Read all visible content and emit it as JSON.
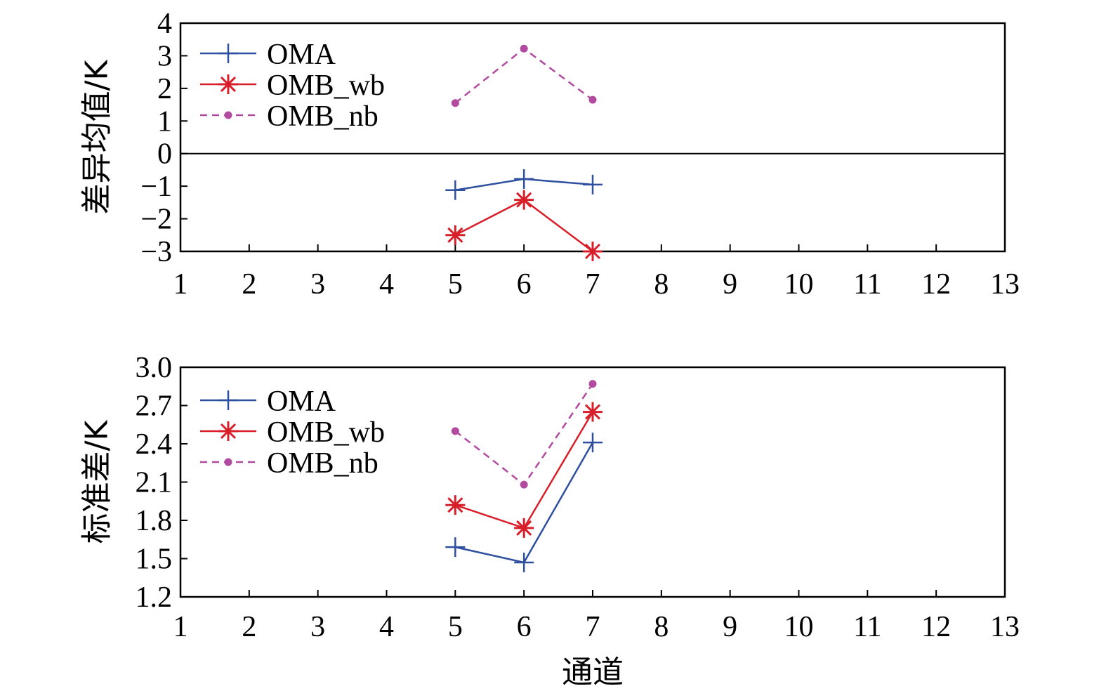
{
  "colors": {
    "OMA": "#2f4f9f",
    "OMB_wb": "#d81e28",
    "OMB_nb": "#b24aa0"
  },
  "chart_data": [
    {
      "type": "line",
      "xlabel": "",
      "ylabel": "差异均值/K",
      "xlim": [
        1,
        13
      ],
      "ylim": [
        -3,
        4
      ],
      "xticks": [
        1,
        2,
        3,
        4,
        5,
        6,
        7,
        8,
        9,
        10,
        11,
        12,
        13
      ],
      "yticks": [
        -3,
        -2,
        -1,
        0,
        1,
        2,
        3,
        4
      ],
      "ytick_labels": [
        "−3",
        "−2",
        "−1",
        "0",
        "1",
        "2",
        "3",
        "4"
      ],
      "zero_line": true,
      "legend_position": "top-left",
      "series": [
        {
          "name": "OMA",
          "marker": "plus",
          "dash": "solid",
          "x": [
            5,
            6,
            7
          ],
          "y": [
            -1.12,
            -0.78,
            -0.95
          ]
        },
        {
          "name": "OMB_wb",
          "marker": "asterisk",
          "dash": "solid",
          "x": [
            5,
            6,
            7
          ],
          "y": [
            -2.5,
            -1.42,
            -3.0
          ]
        },
        {
          "name": "OMB_nb",
          "marker": "dot",
          "dash": "dashed",
          "x": [
            5,
            6,
            7
          ],
          "y": [
            1.55,
            3.22,
            1.65
          ]
        }
      ]
    },
    {
      "type": "line",
      "xlabel": "通道",
      "ylabel": "标准差/K",
      "xlim": [
        1,
        13
      ],
      "ylim": [
        1.2,
        3.0
      ],
      "xticks": [
        1,
        2,
        3,
        4,
        5,
        6,
        7,
        8,
        9,
        10,
        11,
        12,
        13
      ],
      "yticks": [
        1.2,
        1.5,
        1.8,
        2.1,
        2.4,
        2.7,
        3.0
      ],
      "ytick_labels": [
        "1.2",
        "1.5",
        "1.8",
        "2.1",
        "2.4",
        "2.7",
        "3.0"
      ],
      "zero_line": false,
      "legend_position": "top-left",
      "series": [
        {
          "name": "OMA",
          "marker": "plus",
          "dash": "solid",
          "x": [
            5,
            6,
            7
          ],
          "y": [
            1.59,
            1.47,
            2.41
          ]
        },
        {
          "name": "OMB_wb",
          "marker": "asterisk",
          "dash": "solid",
          "x": [
            5,
            6,
            7
          ],
          "y": [
            1.92,
            1.74,
            2.65
          ]
        },
        {
          "name": "OMB_nb",
          "marker": "dot",
          "dash": "dashed",
          "x": [
            5,
            6,
            7
          ],
          "y": [
            2.5,
            2.08,
            2.87
          ]
        }
      ]
    }
  ]
}
